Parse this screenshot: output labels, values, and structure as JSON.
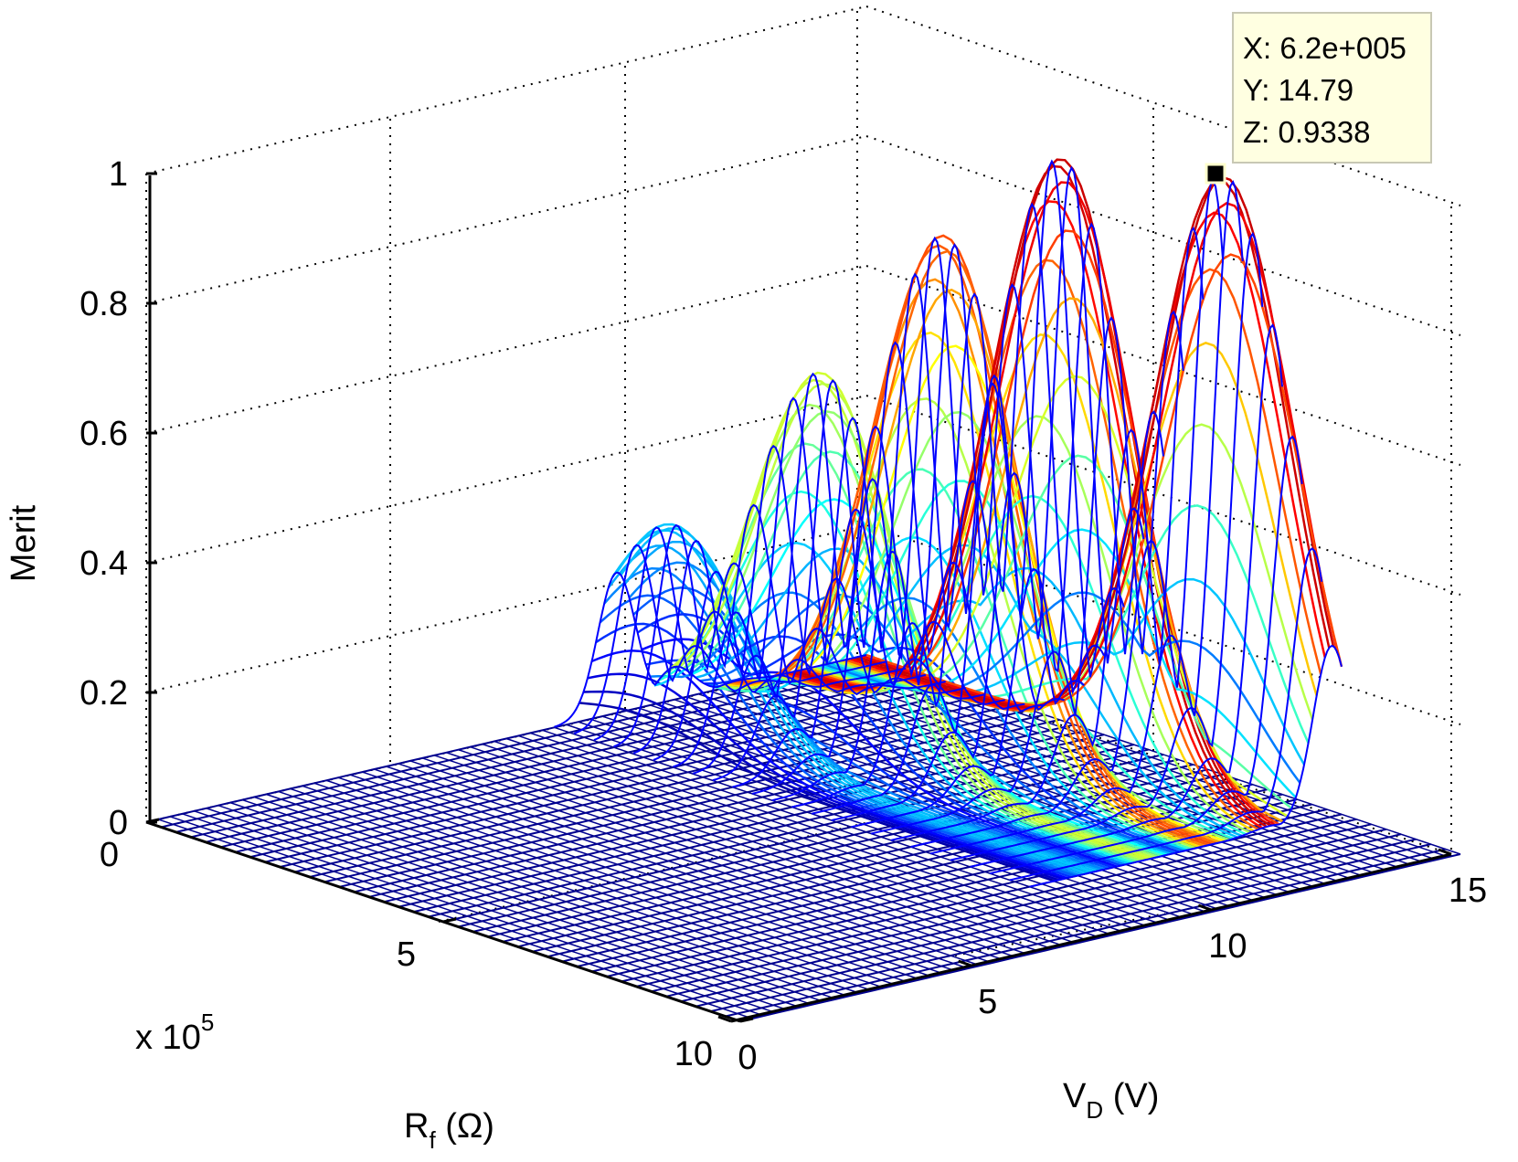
{
  "chart_data": {
    "type": "surface-mesh-3d",
    "title": "",
    "xlabel_main": "R",
    "xlabel_sub": "f",
    "xlabel_unit": " (Ω)",
    "ylabel_main": "V",
    "ylabel_sub": "D",
    "ylabel_unit": " (V)",
    "zlabel": "Merit",
    "x_exponent_base": "x 10",
    "x_exponent_power": "5",
    "x_ticks": [
      "0",
      "5",
      "10"
    ],
    "x_tick_values": [
      0,
      5,
      10
    ],
    "y_ticks": [
      "0",
      "5",
      "10",
      "15"
    ],
    "y_tick_values": [
      0,
      5,
      10,
      15
    ],
    "z_ticks": [
      "0",
      "0.2",
      "0.4",
      "0.6",
      "0.8",
      "1"
    ],
    "z_tick_values": [
      0,
      0.2,
      0.4,
      0.6,
      0.8,
      1
    ],
    "xlim": [
      0,
      10
    ],
    "ylim": [
      0,
      15
    ],
    "zlim": [
      0,
      1
    ],
    "grid": true,
    "colormap": "jet",
    "peaks": [
      {
        "y": 9.8,
        "x": 1.0,
        "z": 0.32
      },
      {
        "y": 11.0,
        "x": 2.5,
        "z": 0.58
      },
      {
        "y": 12.3,
        "x": 3.5,
        "z": 0.8
      },
      {
        "y": 13.5,
        "x": 4.5,
        "z": 0.93
      },
      {
        "y": 14.79,
        "x": 6.2,
        "z": 0.9338
      }
    ],
    "datatip": {
      "x": "X: 6.2e+005",
      "y": "Y: 14.79",
      "z": "Z: 0.9338"
    },
    "colors": {
      "base_mesh": "#00008f",
      "peak_line": "#0000ff",
      "grid": "#000000",
      "datatip_bg": "#ffffe1"
    }
  }
}
